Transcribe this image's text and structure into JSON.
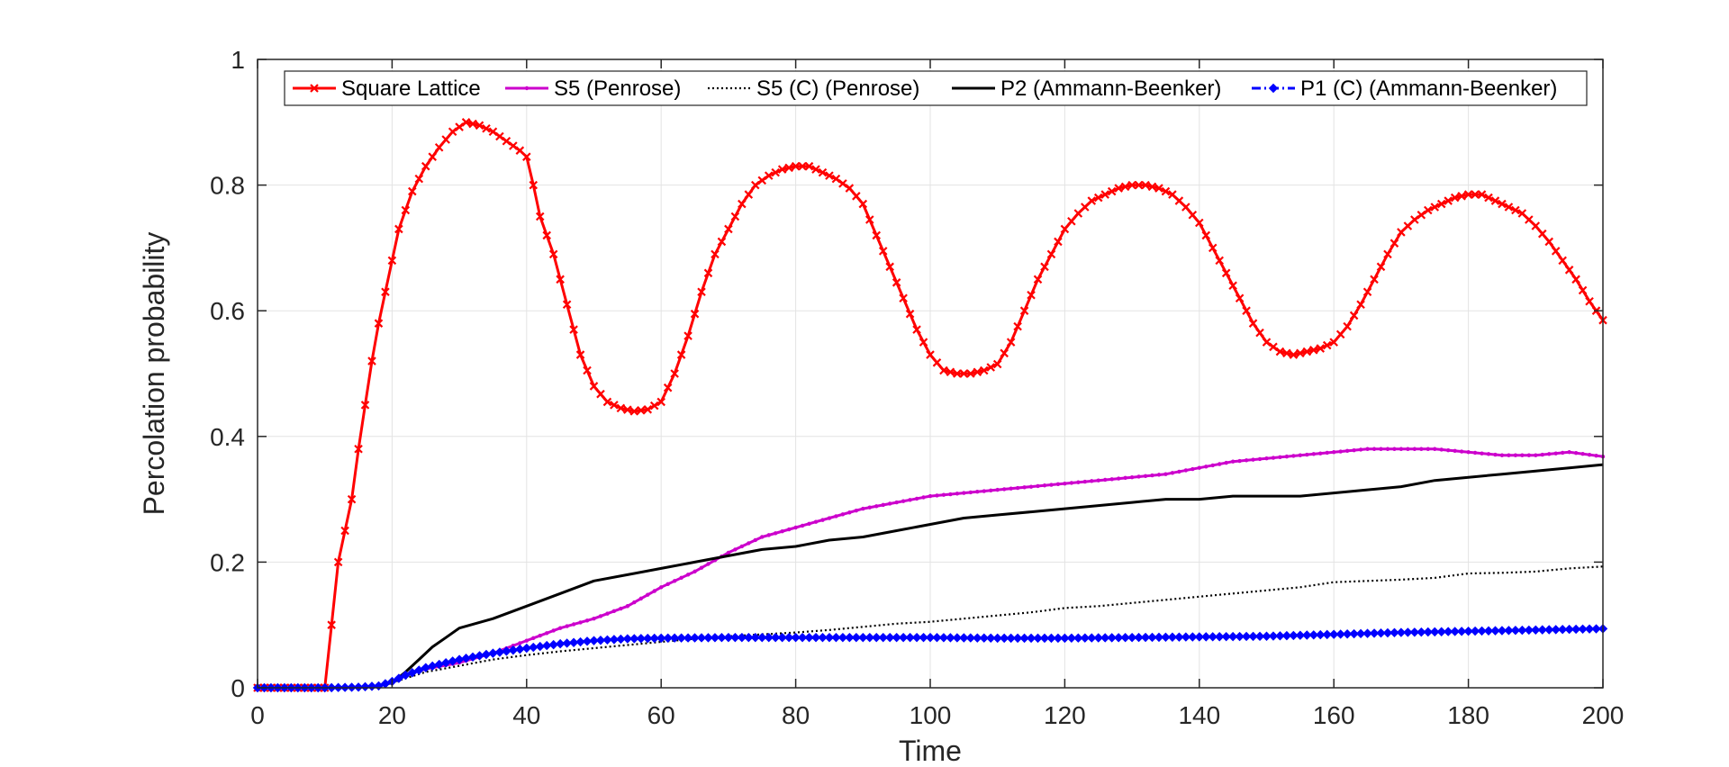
{
  "chart_data": {
    "type": "line",
    "xlabel": "Time",
    "ylabel": "Percolation probability",
    "xlim": [
      0,
      200
    ],
    "ylim": [
      0,
      1
    ],
    "xticks": [
      "0",
      "20",
      "40",
      "60",
      "80",
      "100",
      "120",
      "140",
      "160",
      "180",
      "200"
    ],
    "yticks": [
      "0",
      "0.2",
      "0.4",
      "0.6",
      "0.8",
      "1"
    ],
    "grid": true,
    "legend_position": "top",
    "series": [
      {
        "name": "Square Lattice",
        "color": "#ff0000",
        "line": "solid",
        "marker": "x",
        "points": [
          [
            0,
            0
          ],
          [
            10,
            0
          ],
          [
            11,
            0.1
          ],
          [
            12,
            0.2
          ],
          [
            14,
            0.3
          ],
          [
            15,
            0.38
          ],
          [
            16,
            0.45
          ],
          [
            17,
            0.52
          ],
          [
            18,
            0.58
          ],
          [
            19,
            0.63
          ],
          [
            20,
            0.68
          ],
          [
            21,
            0.73
          ],
          [
            22,
            0.76
          ],
          [
            23,
            0.79
          ],
          [
            25,
            0.83
          ],
          [
            27,
            0.86
          ],
          [
            29,
            0.885
          ],
          [
            31,
            0.9
          ],
          [
            33,
            0.895
          ],
          [
            35,
            0.885
          ],
          [
            37,
            0.87
          ],
          [
            39,
            0.855
          ],
          [
            40,
            0.845
          ],
          [
            41,
            0.8
          ],
          [
            42,
            0.75
          ],
          [
            44,
            0.69
          ],
          [
            46,
            0.61
          ],
          [
            48,
            0.53
          ],
          [
            50,
            0.48
          ],
          [
            52,
            0.455
          ],
          [
            54,
            0.445
          ],
          [
            56,
            0.44
          ],
          [
            58,
            0.443
          ],
          [
            60,
            0.455
          ],
          [
            62,
            0.5
          ],
          [
            64,
            0.56
          ],
          [
            66,
            0.63
          ],
          [
            68,
            0.69
          ],
          [
            70,
            0.73
          ],
          [
            72,
            0.77
          ],
          [
            74,
            0.8
          ],
          [
            76,
            0.815
          ],
          [
            78,
            0.825
          ],
          [
            80,
            0.83
          ],
          [
            82,
            0.83
          ],
          [
            84,
            0.82
          ],
          [
            86,
            0.81
          ],
          [
            88,
            0.795
          ],
          [
            90,
            0.77
          ],
          [
            92,
            0.72
          ],
          [
            94,
            0.67
          ],
          [
            96,
            0.62
          ],
          [
            98,
            0.57
          ],
          [
            100,
            0.53
          ],
          [
            102,
            0.505
          ],
          [
            104,
            0.5
          ],
          [
            106,
            0.5
          ],
          [
            108,
            0.505
          ],
          [
            110,
            0.515
          ],
          [
            112,
            0.55
          ],
          [
            114,
            0.6
          ],
          [
            116,
            0.65
          ],
          [
            118,
            0.69
          ],
          [
            120,
            0.73
          ],
          [
            122,
            0.755
          ],
          [
            124,
            0.775
          ],
          [
            126,
            0.785
          ],
          [
            128,
            0.795
          ],
          [
            130,
            0.8
          ],
          [
            132,
            0.8
          ],
          [
            134,
            0.795
          ],
          [
            136,
            0.785
          ],
          [
            138,
            0.765
          ],
          [
            140,
            0.74
          ],
          [
            142,
            0.7
          ],
          [
            144,
            0.66
          ],
          [
            146,
            0.62
          ],
          [
            148,
            0.58
          ],
          [
            150,
            0.55
          ],
          [
            152,
            0.535
          ],
          [
            154,
            0.53
          ],
          [
            156,
            0.535
          ],
          [
            158,
            0.54
          ],
          [
            160,
            0.55
          ],
          [
            162,
            0.575
          ],
          [
            164,
            0.61
          ],
          [
            166,
            0.65
          ],
          [
            168,
            0.69
          ],
          [
            170,
            0.725
          ],
          [
            172,
            0.745
          ],
          [
            174,
            0.76
          ],
          [
            176,
            0.77
          ],
          [
            178,
            0.78
          ],
          [
            180,
            0.785
          ],
          [
            182,
            0.785
          ],
          [
            184,
            0.775
          ],
          [
            186,
            0.765
          ],
          [
            188,
            0.755
          ],
          [
            190,
            0.735
          ],
          [
            192,
            0.71
          ],
          [
            194,
            0.68
          ],
          [
            196,
            0.65
          ],
          [
            198,
            0.615
          ],
          [
            200,
            0.585
          ]
        ]
      },
      {
        "name": "S5 (Penrose)",
        "color": "#cc00cc",
        "line": "solid",
        "marker": "dot",
        "points": [
          [
            0,
            0
          ],
          [
            10,
            0
          ],
          [
            15,
            0.001
          ],
          [
            18,
            0.003
          ],
          [
            20,
            0.01
          ],
          [
            22,
            0.02
          ],
          [
            25,
            0.03
          ],
          [
            30,
            0.04
          ],
          [
            35,
            0.055
          ],
          [
            40,
            0.075
          ],
          [
            45,
            0.095
          ],
          [
            50,
            0.11
          ],
          [
            55,
            0.13
          ],
          [
            60,
            0.16
          ],
          [
            65,
            0.185
          ],
          [
            70,
            0.215
          ],
          [
            75,
            0.24
          ],
          [
            80,
            0.255
          ],
          [
            85,
            0.27
          ],
          [
            90,
            0.285
          ],
          [
            95,
            0.295
          ],
          [
            100,
            0.305
          ],
          [
            105,
            0.31
          ],
          [
            110,
            0.315
          ],
          [
            115,
            0.32
          ],
          [
            120,
            0.325
          ],
          [
            125,
            0.33
          ],
          [
            130,
            0.335
          ],
          [
            135,
            0.34
          ],
          [
            140,
            0.35
          ],
          [
            145,
            0.36
          ],
          [
            150,
            0.365
          ],
          [
            155,
            0.37
          ],
          [
            160,
            0.375
          ],
          [
            165,
            0.38
          ],
          [
            170,
            0.38
          ],
          [
            175,
            0.38
          ],
          [
            180,
            0.375
          ],
          [
            185,
            0.37
          ],
          [
            190,
            0.37
          ],
          [
            195,
            0.375
          ],
          [
            200,
            0.368
          ]
        ]
      },
      {
        "name": "S5 (C) (Penrose)",
        "color": "#000000",
        "line": "dotted",
        "marker": "none",
        "points": [
          [
            0,
            0
          ],
          [
            10,
            0
          ],
          [
            15,
            0.001
          ],
          [
            18,
            0.003
          ],
          [
            20,
            0.008
          ],
          [
            22,
            0.015
          ],
          [
            25,
            0.025
          ],
          [
            30,
            0.035
          ],
          [
            35,
            0.045
          ],
          [
            40,
            0.052
          ],
          [
            45,
            0.058
          ],
          [
            50,
            0.063
          ],
          [
            55,
            0.068
          ],
          [
            60,
            0.073
          ],
          [
            65,
            0.078
          ],
          [
            70,
            0.082
          ],
          [
            75,
            0.085
          ],
          [
            80,
            0.088
          ],
          [
            85,
            0.092
          ],
          [
            90,
            0.097
          ],
          [
            95,
            0.102
          ],
          [
            100,
            0.105
          ],
          [
            105,
            0.11
          ],
          [
            110,
            0.115
          ],
          [
            115,
            0.12
          ],
          [
            120,
            0.127
          ],
          [
            125,
            0.13
          ],
          [
            130,
            0.135
          ],
          [
            135,
            0.14
          ],
          [
            140,
            0.145
          ],
          [
            145,
            0.15
          ],
          [
            150,
            0.155
          ],
          [
            155,
            0.16
          ],
          [
            160,
            0.168
          ],
          [
            165,
            0.17
          ],
          [
            170,
            0.172
          ],
          [
            175,
            0.175
          ],
          [
            180,
            0.182
          ],
          [
            185,
            0.183
          ],
          [
            190,
            0.185
          ],
          [
            195,
            0.19
          ],
          [
            200,
            0.193
          ]
        ]
      },
      {
        "name": "P2 (Ammann-Beenker)",
        "color": "#000000",
        "line": "solid",
        "marker": "none",
        "points": [
          [
            0,
            0
          ],
          [
            10,
            0
          ],
          [
            15,
            0.001
          ],
          [
            18,
            0.003
          ],
          [
            20,
            0.008
          ],
          [
            22,
            0.025
          ],
          [
            24,
            0.045
          ],
          [
            26,
            0.065
          ],
          [
            28,
            0.08
          ],
          [
            30,
            0.095
          ],
          [
            35,
            0.11
          ],
          [
            40,
            0.13
          ],
          [
            45,
            0.15
          ],
          [
            50,
            0.17
          ],
          [
            55,
            0.18
          ],
          [
            60,
            0.19
          ],
          [
            65,
            0.2
          ],
          [
            70,
            0.21
          ],
          [
            75,
            0.22
          ],
          [
            80,
            0.225
          ],
          [
            85,
            0.235
          ],
          [
            90,
            0.24
          ],
          [
            95,
            0.25
          ],
          [
            100,
            0.26
          ],
          [
            105,
            0.27
          ],
          [
            110,
            0.275
          ],
          [
            115,
            0.28
          ],
          [
            120,
            0.285
          ],
          [
            125,
            0.29
          ],
          [
            130,
            0.295
          ],
          [
            135,
            0.3
          ],
          [
            140,
            0.3
          ],
          [
            145,
            0.305
          ],
          [
            150,
            0.305
          ],
          [
            155,
            0.305
          ],
          [
            160,
            0.31
          ],
          [
            165,
            0.315
          ],
          [
            170,
            0.32
          ],
          [
            175,
            0.33
          ],
          [
            180,
            0.335
          ],
          [
            185,
            0.34
          ],
          [
            190,
            0.345
          ],
          [
            195,
            0.35
          ],
          [
            200,
            0.355
          ]
        ]
      },
      {
        "name": "P1 (C) (Ammann-Beenker)",
        "color": "#0000ff",
        "line": "dashdot",
        "marker": "diamond",
        "points": [
          [
            0,
            0
          ],
          [
            10,
            0
          ],
          [
            15,
            0.001
          ],
          [
            18,
            0.003
          ],
          [
            20,
            0.01
          ],
          [
            22,
            0.02
          ],
          [
            25,
            0.032
          ],
          [
            30,
            0.045
          ],
          [
            35,
            0.055
          ],
          [
            40,
            0.063
          ],
          [
            45,
            0.07
          ],
          [
            50,
            0.075
          ],
          [
            55,
            0.078
          ],
          [
            60,
            0.079
          ],
          [
            70,
            0.08
          ],
          [
            80,
            0.08
          ],
          [
            90,
            0.08
          ],
          [
            100,
            0.08
          ],
          [
            110,
            0.079
          ],
          [
            120,
            0.079
          ],
          [
            130,
            0.08
          ],
          [
            140,
            0.081
          ],
          [
            150,
            0.082
          ],
          [
            160,
            0.085
          ],
          [
            170,
            0.088
          ],
          [
            180,
            0.09
          ],
          [
            190,
            0.092
          ],
          [
            200,
            0.094
          ]
        ]
      }
    ]
  }
}
